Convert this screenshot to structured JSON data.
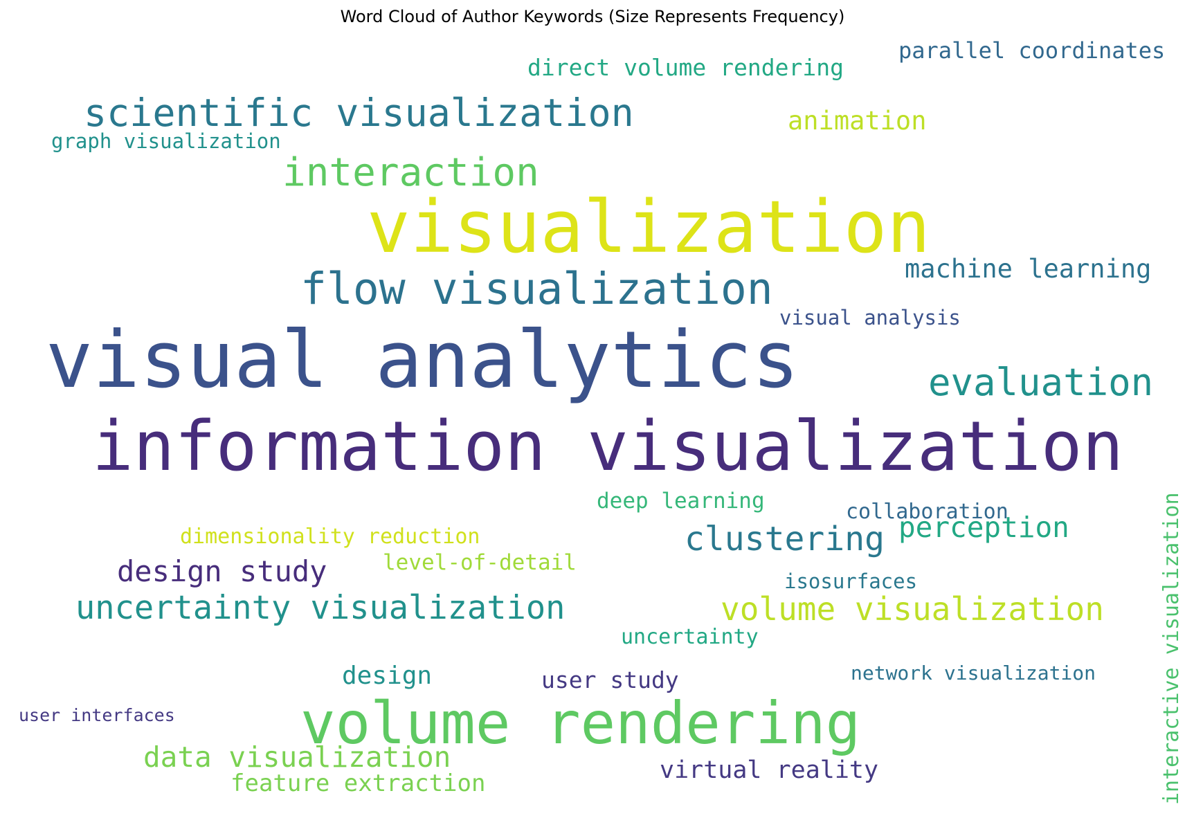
{
  "title": "Word Cloud of Author Keywords (Size Represents Frequency)",
  "words": [
    {
      "text": "information visualization",
      "color": "#472d7b"
    },
    {
      "text": "visual analytics",
      "color": "#3b528b"
    },
    {
      "text": "visualization",
      "color": "#dde318"
    },
    {
      "text": "volume rendering",
      "color": "#5ec962"
    },
    {
      "text": "flow visualization",
      "color": "#2c728e"
    },
    {
      "text": "scientific visualization",
      "color": "#2a788e"
    },
    {
      "text": "interaction",
      "color": "#5ec962"
    },
    {
      "text": "evaluation",
      "color": "#21918c"
    },
    {
      "text": "uncertainty visualization",
      "color": "#21918c"
    },
    {
      "text": "volume visualization",
      "color": "#bddf26"
    },
    {
      "text": "clustering",
      "color": "#2a788e"
    },
    {
      "text": "design study",
      "color": "#472d7b"
    },
    {
      "text": "perception",
      "color": "#22a884"
    },
    {
      "text": "data visualization",
      "color": "#7ad151"
    },
    {
      "text": "machine learning",
      "color": "#2c728e"
    },
    {
      "text": "animation",
      "color": "#bddf26"
    },
    {
      "text": "parallel coordinates",
      "color": "#31688e"
    },
    {
      "text": "direct volume rendering",
      "color": "#22a884"
    },
    {
      "text": "virtual reality",
      "color": "#443983"
    },
    {
      "text": "feature extraction",
      "color": "#7ad151"
    },
    {
      "text": "design",
      "color": "#21918c"
    },
    {
      "text": "user study",
      "color": "#443983"
    },
    {
      "text": "deep learning",
      "color": "#35b779"
    },
    {
      "text": "graph visualization",
      "color": "#21918c"
    },
    {
      "text": "level-of-detail",
      "color": "#a0da39"
    },
    {
      "text": "dimensionality reduction",
      "color": "#d0e11c"
    },
    {
      "text": "uncertainty",
      "color": "#22a884"
    },
    {
      "text": "network visualization",
      "color": "#2c728e"
    },
    {
      "text": "collaboration",
      "color": "#31688e"
    },
    {
      "text": "isosurfaces",
      "color": "#2a788e"
    },
    {
      "text": "visual analysis",
      "color": "#3b528b"
    },
    {
      "text": "user interfaces",
      "color": "#443983"
    },
    {
      "text": "interactive visualization",
      "color": "#4ac16d"
    }
  ]
}
